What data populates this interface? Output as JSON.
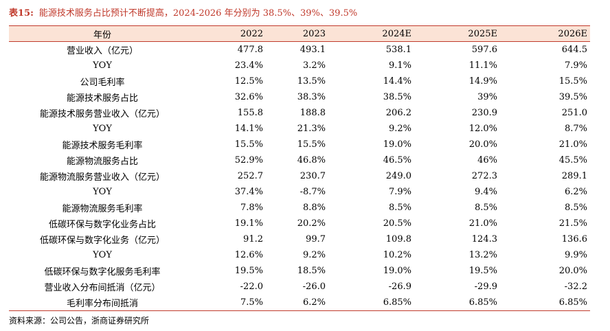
{
  "title": {
    "number": "表15:",
    "text": "能源技术服务占比预计不断提高，2024-2026 年分别为 38.5%、39%、39.5%"
  },
  "table": {
    "headers": [
      "年份",
      "2022",
      "2023",
      "2024E",
      "2025E",
      "2026E"
    ],
    "rows": [
      [
        "营业收入（亿元）",
        "477.8",
        "493.1",
        "538.1",
        "597.6",
        "644.5"
      ],
      [
        "YOY",
        "23.4%",
        "3.2%",
        "9.1%",
        "11.1%",
        "7.9%"
      ],
      [
        "公司毛利率",
        "12.5%",
        "13.5%",
        "14.4%",
        "14.9%",
        "15.5%"
      ],
      [
        "能源技术服务占比",
        "32.6%",
        "38.3%",
        "38.5%",
        "39%",
        "39.5%"
      ],
      [
        "能源技术服务营业收入（亿元）",
        "155.8",
        "188.8",
        "206.2",
        "230.9",
        "251.0"
      ],
      [
        "YOY",
        "14.1%",
        "21.3%",
        "9.2%",
        "12.0%",
        "8.7%"
      ],
      [
        "能源技术服务毛利率",
        "15.5%",
        "15.5%",
        "19.0%",
        "20.0%",
        "21.0%"
      ],
      [
        "能源物流服务占比",
        "52.9%",
        "46.8%",
        "46.5%",
        "46%",
        "45.5%"
      ],
      [
        "能源物流服务营业收入（亿元）",
        "252.7",
        "230.7",
        "249.0",
        "272.3",
        "289.1"
      ],
      [
        "YOY",
        "37.4%",
        "-8.7%",
        "7.9%",
        "9.4%",
        "6.2%"
      ],
      [
        "能源物流服务毛利率",
        "7.8%",
        "8.8%",
        "8.5%",
        "8.5%",
        "8.5%"
      ],
      [
        "低碳环保与数字化业务占比",
        "19.1%",
        "20.2%",
        "20.5%",
        "21.0%",
        "21.5%"
      ],
      [
        "低碳环保与数字化业务（亿元）",
        "91.2",
        "99.7",
        "109.8",
        "124.3",
        "136.6"
      ],
      [
        "YOY",
        "12.6%",
        "9.2%",
        "10.2%",
        "13.2%",
        "9.9%"
      ],
      [
        "低碳环保与数字化服务毛利率",
        "19.5%",
        "18.5%",
        "19.0%",
        "19.5%",
        "20.0%"
      ],
      [
        "营业收入分布间抵消（亿元）",
        "-22.0",
        "-26.0",
        "-26.9",
        "-29.9",
        "-32.2"
      ],
      [
        "毛利率分布间抵消",
        "7.5%",
        "6.2%",
        "6.85%",
        "6.85%",
        "6.85%"
      ]
    ]
  },
  "source": "资料来源：公司公告，浙商证券研究所"
}
